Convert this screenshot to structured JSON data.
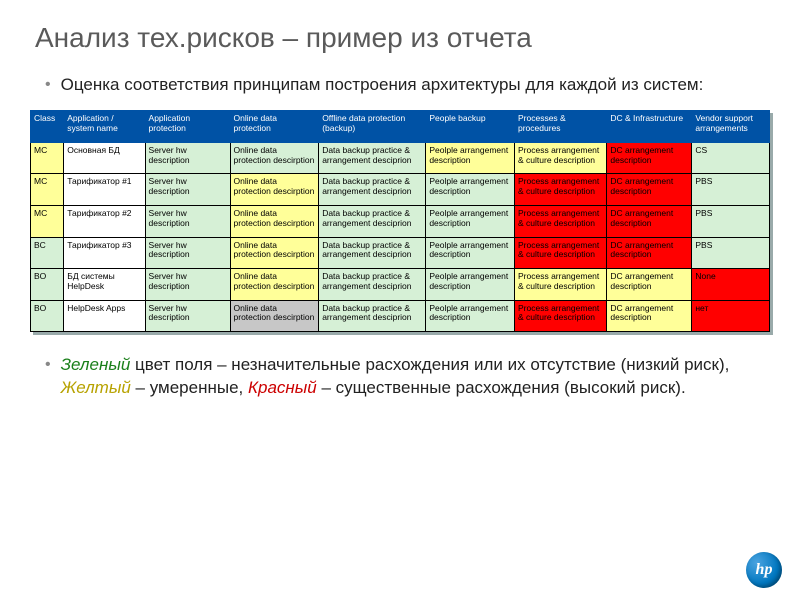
{
  "title": "Анализ тех.рисков – пример из отчета",
  "bullet1": "Оценка соответствия принципам построения архитектуры для каждой из систем:",
  "legend": {
    "green_lbl": "Зеленый",
    "green_txt": " цвет поля – незначительные расхождения или их отсутствие (низкий риск), ",
    "yellow_lbl": "Желтый",
    "yellow_txt": " – умеренные, ",
    "red_lbl": "Красный",
    "red_txt": " – существенные расхождения (высокий риск)."
  },
  "logo_text": "hp",
  "table": {
    "colors": {
      "green": "#d6f0d6",
      "yellow": "#ffff99",
      "red": "#ff0000",
      "white": "#ffffff",
      "grey": "#c7c7c7",
      "header_bg": "#0052a5"
    },
    "col_widths": [
      "4.5%",
      "11%",
      "11.5%",
      "12%",
      "14.5%",
      "12%",
      "12.5%",
      "11.5%",
      "10.5%"
    ],
    "headers": [
      "Class",
      "Application / system name",
      "Application protection",
      "Online data protection",
      "Offline data protection (backup)",
      "People backup",
      "Processes & procedures",
      "DC & Infrastructure",
      "Vendor support arrangements"
    ],
    "rows": [
      {
        "cells": [
          {
            "t": "MC",
            "c": "yellow"
          },
          {
            "t": "Основная БД",
            "c": "white"
          },
          {
            "t": "Server hw description",
            "c": "green"
          },
          {
            "t": "Online data protection descirption",
            "c": "green"
          },
          {
            "t": "Data backup practice & arrangement desciprion",
            "c": "green"
          },
          {
            "t": "Peolple arrangement description",
            "c": "yellow"
          },
          {
            "t": "Process arrangement & culture description",
            "c": "yellow"
          },
          {
            "t": "DC arrangement description",
            "c": "red"
          },
          {
            "t": "CS",
            "c": "green"
          }
        ]
      },
      {
        "cells": [
          {
            "t": "MC",
            "c": "yellow"
          },
          {
            "t": "Тарификатор #1",
            "c": "white"
          },
          {
            "t": "Server hw description",
            "c": "green"
          },
          {
            "t": "Online data protection descirption",
            "c": "yellow"
          },
          {
            "t": "Data backup practice & arrangement desciprion",
            "c": "green"
          },
          {
            "t": "Peolple arrangement description",
            "c": "green"
          },
          {
            "t": "Process arrangement & culture description",
            "c": "red"
          },
          {
            "t": "DC arrangement description",
            "c": "red"
          },
          {
            "t": "PBS",
            "c": "green"
          }
        ]
      },
      {
        "cells": [
          {
            "t": "MC",
            "c": "yellow"
          },
          {
            "t": "Тарификатор #2",
            "c": "white"
          },
          {
            "t": "Server hw description",
            "c": "green"
          },
          {
            "t": "Online data protection descirption",
            "c": "yellow"
          },
          {
            "t": "Data backup practice & arrangement desciprion",
            "c": "green"
          },
          {
            "t": "Peolple arrangement description",
            "c": "green"
          },
          {
            "t": "Process arrangement & culture description",
            "c": "red"
          },
          {
            "t": "DC arrangement description",
            "c": "red"
          },
          {
            "t": "PBS",
            "c": "green"
          }
        ]
      },
      {
        "cells": [
          {
            "t": "BC",
            "c": "green"
          },
          {
            "t": "Тарификатор #3",
            "c": "white"
          },
          {
            "t": "Server hw description",
            "c": "green"
          },
          {
            "t": "Online data protection descirption",
            "c": "yellow"
          },
          {
            "t": "Data backup practice & arrangement desciprion",
            "c": "green"
          },
          {
            "t": "Peolple arrangement description",
            "c": "green"
          },
          {
            "t": "Process arrangement & culture description",
            "c": "red"
          },
          {
            "t": "DC arrangement description",
            "c": "red"
          },
          {
            "t": "PBS",
            "c": "green"
          }
        ]
      },
      {
        "cells": [
          {
            "t": "BO",
            "c": "green"
          },
          {
            "t": "БД системы HelpDesk",
            "c": "white"
          },
          {
            "t": "Server hw description",
            "c": "green"
          },
          {
            "t": "Online data protection descirption",
            "c": "yellow"
          },
          {
            "t": "Data backup practice & arrangement desciprion",
            "c": "green"
          },
          {
            "t": "Peolple arrangement description",
            "c": "green"
          },
          {
            "t": "Process arrangement & culture description",
            "c": "yellow"
          },
          {
            "t": "DC arrangement description",
            "c": "yellow"
          },
          {
            "t": "None",
            "c": "red"
          }
        ]
      },
      {
        "cells": [
          {
            "t": "BO",
            "c": "green"
          },
          {
            "t": "HelpDesk Apps",
            "c": "white"
          },
          {
            "t": "Server hw description",
            "c": "green"
          },
          {
            "t": "Online data protection descirption",
            "c": "grey"
          },
          {
            "t": "Data backup practice & arrangement desciprion",
            "c": "green"
          },
          {
            "t": "Peolple arrangement description",
            "c": "green"
          },
          {
            "t": "Process arrangement & culture description",
            "c": "red"
          },
          {
            "t": "DC arrangement description",
            "c": "yellow"
          },
          {
            "t": "нет",
            "c": "red"
          }
        ]
      }
    ]
  }
}
